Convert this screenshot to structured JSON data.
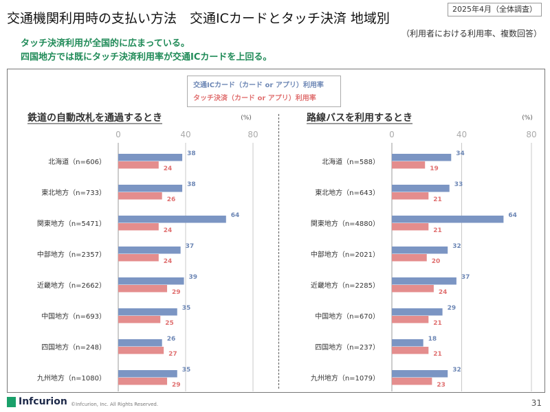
{
  "header": {
    "date_tag": "2025年4月（全体調査）",
    "title": "交通機関利用時の支払い方法　交通ICカードとタッチ決済 地域別",
    "note": "（利用者における利用率、複数回答）",
    "messages": [
      "タッチ決済利用が全国的に広まっている。",
      "四国地方では既にタッチ決済利用率が交通ICカードを上回る。"
    ]
  },
  "legend": {
    "ic": "交通ICカード（カード or アプリ）利用率",
    "touch": "タッチ決済（カード or アプリ）利用率"
  },
  "colors": {
    "ic": "#7b95c3",
    "touch": "#e48d8d",
    "ic_label": "#6d87b5",
    "touch_label": "#e07070"
  },
  "chart_data": [
    {
      "type": "bar",
      "orientation": "horizontal",
      "title": "鉄道の自動改札を通過するとき",
      "unit": "(%)",
      "xlim": [
        0,
        80
      ],
      "ticks": [
        "0",
        "40",
        "80"
      ],
      "categories": [
        "北海道（n=606）",
        "東北地方（n=733）",
        "関東地方（n=5471）",
        "中部地方（n=2357）",
        "近畿地方（n=2662）",
        "中国地方（n=693）",
        "四国地方（n=248）",
        "九州地方（n=1080）"
      ],
      "series": [
        {
          "name": "交通ICカード（カード or アプリ）利用率",
          "values": [
            38,
            38,
            64,
            37,
            39,
            35,
            26,
            35
          ]
        },
        {
          "name": "タッチ決済（カード or アプリ）利用率",
          "values": [
            24,
            26,
            24,
            24,
            29,
            25,
            27,
            29
          ]
        }
      ]
    },
    {
      "type": "bar",
      "orientation": "horizontal",
      "title": "路線バスを利用するとき",
      "unit": "(%)",
      "xlim": [
        0,
        80
      ],
      "ticks": [
        "0",
        "40",
        "80"
      ],
      "categories": [
        "北海道（n=588）",
        "東北地方（n=643）",
        "関東地方（n=4880）",
        "中部地方（n=2021）",
        "近畿地方（n=2285）",
        "中国地方（n=670）",
        "四国地方（n=237）",
        "九州地方（n=1079）"
      ],
      "series": [
        {
          "name": "交通ICカード（カード or アプリ）利用率",
          "values": [
            34,
            33,
            64,
            32,
            37,
            29,
            18,
            32
          ]
        },
        {
          "name": "タッチ決済（カード or アプリ）利用率",
          "values": [
            19,
            21,
            21,
            20,
            24,
            21,
            21,
            23
          ]
        }
      ]
    }
  ],
  "footer": {
    "brand": "Infcurion",
    "copyright": "©Infcurion, Inc.  All Rights Reserved.",
    "page": "31"
  }
}
